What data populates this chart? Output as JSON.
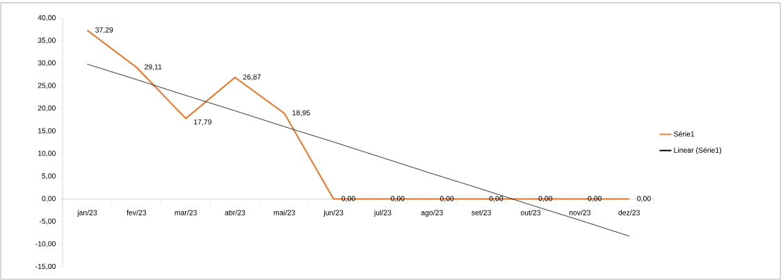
{
  "chart_data": {
    "type": "line",
    "categories": [
      "jan/23",
      "fev/23",
      "mar/23",
      "abr/23",
      "mai/23",
      "jun/23",
      "jul/23",
      "ago/23",
      "set/23",
      "out/23",
      "nov/23",
      "dez/23"
    ],
    "series": [
      {
        "name": "Série1",
        "color": "#ed7d31",
        "values": [
          37.29,
          29.11,
          17.79,
          26.87,
          18.95,
          0,
          0,
          0,
          0,
          0,
          0,
          0
        ],
        "value_labels": [
          "37,29",
          "29,11",
          "17,79",
          "26,87",
          "18,95",
          "0,00",
          "0,00",
          "0,00",
          "0,00",
          "0,00",
          "0,00",
          "0,00"
        ]
      },
      {
        "name": "Linear (Série1)",
        "color": "#000000",
        "type": "line",
        "values": [
          29.8,
          26.4,
          22.9,
          19.5,
          16.0,
          12.6,
          9.1,
          5.6,
          2.2,
          -1.3,
          -4.7,
          -8.2
        ]
      }
    ],
    "ylim": [
      -15,
      40
    ],
    "yticks": [
      {
        "value": 40,
        "label": "40,00"
      },
      {
        "value": 35,
        "label": "35,00"
      },
      {
        "value": 30,
        "label": "30,00"
      },
      {
        "value": 25,
        "label": "25,00"
      },
      {
        "value": 20,
        "label": "20,00"
      },
      {
        "value": 15,
        "label": "15,00"
      },
      {
        "value": 10,
        "label": "10,00"
      },
      {
        "value": 5,
        "label": "5,00"
      },
      {
        "value": 0,
        "label": "0,00"
      },
      {
        "value": -5,
        "label": "-5,00"
      },
      {
        "value": -10,
        "label": "-10,00"
      },
      {
        "value": -15,
        "label": "-15,00"
      }
    ],
    "legend": "right",
    "grid": false
  }
}
